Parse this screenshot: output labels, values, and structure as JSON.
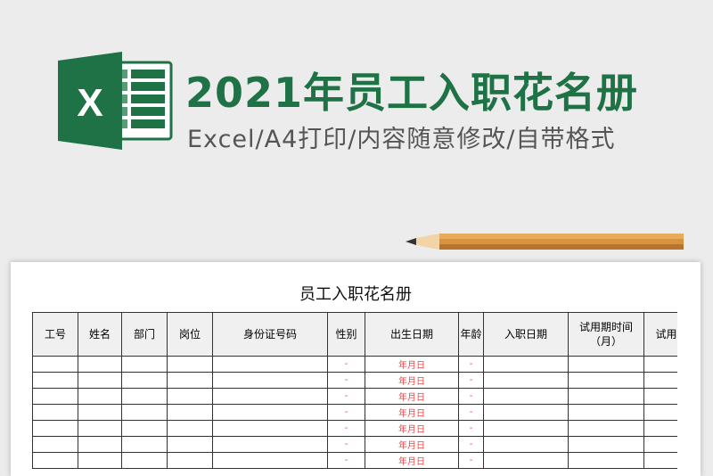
{
  "banner": {
    "title": "2021年员工入职花名册",
    "subtitle": "Excel/A4打印/内容随意修改/自带格式",
    "logo_letter": "X",
    "brand_color": "#1e7245"
  },
  "sheet": {
    "title": "员工入职花名册",
    "headers": [
      "工号",
      "姓名",
      "部门",
      "岗位",
      "身份证号码",
      "性别",
      "出生日期",
      "年龄",
      "入职日期",
      "试用期时间（月）",
      "试用期时"
    ],
    "row_values": {
      "gender": "-",
      "birth": "年月日",
      "age": "-",
      "last": "-"
    },
    "row_count": 7,
    "placeholder_color": "#e8484a"
  }
}
